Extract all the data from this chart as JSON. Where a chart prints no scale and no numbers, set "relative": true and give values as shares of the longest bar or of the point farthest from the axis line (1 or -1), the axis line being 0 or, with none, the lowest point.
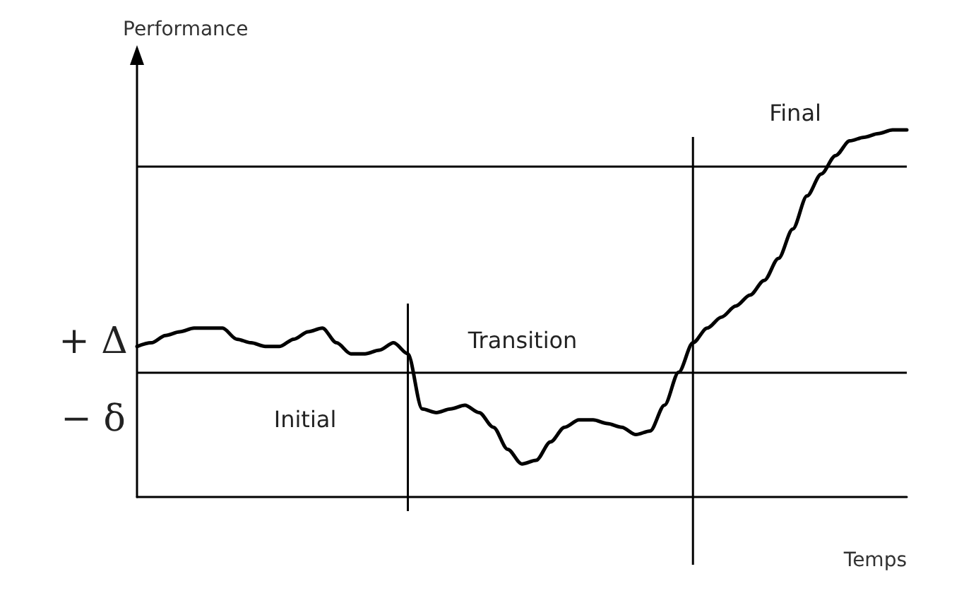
{
  "chart_data": {
    "type": "line",
    "relative": true,
    "xlabel": "Temps",
    "ylabel": "Performance",
    "categories": [
      null,
      null,
      null,
      null,
      null,
      null,
      null,
      null,
      null,
      null,
      null,
      null,
      null,
      null,
      null,
      null,
      null,
      null,
      null,
      null,
      null,
      null,
      null,
      null,
      null,
      null,
      null,
      null,
      null,
      null,
      null,
      null,
      null,
      null,
      null,
      null,
      null,
      null,
      null,
      null,
      null,
      null,
      null,
      null,
      null,
      null,
      null,
      null,
      null,
      null,
      null,
      null,
      null,
      null,
      null
    ],
    "series": [
      {
        "color": "#000000",
        "values": [
          0.41,
          0.42,
          0.44,
          0.45,
          0.46,
          0.46,
          0.46,
          0.43,
          0.42,
          0.41,
          0.41,
          0.43,
          0.45,
          0.46,
          0.42,
          0.39,
          0.39,
          0.4,
          0.42,
          0.39,
          0.24,
          0.23,
          0.24,
          0.25,
          0.23,
          0.19,
          0.13,
          0.09,
          0.1,
          0.15,
          0.19,
          0.21,
          0.21,
          0.2,
          0.19,
          0.17,
          0.18,
          0.25,
          0.34,
          0.42,
          0.46,
          0.49,
          0.52,
          0.55,
          0.59,
          0.65,
          0.73,
          0.82,
          0.88,
          0.93,
          0.97,
          0.98,
          0.99,
          1.0,
          1.0
        ]
      }
    ],
    "ref_lines": [
      {
        "axis": "y",
        "value": 0.9,
        "color": "#000000"
      },
      {
        "axis": "y",
        "value": 0.34,
        "color": "#000000"
      }
    ],
    "annotations": [
      "+ Δ",
      "− δ",
      "Initial",
      "Transition",
      "Final"
    ],
    "grid": false,
    "marker": "none",
    "line_style": "solid"
  }
}
